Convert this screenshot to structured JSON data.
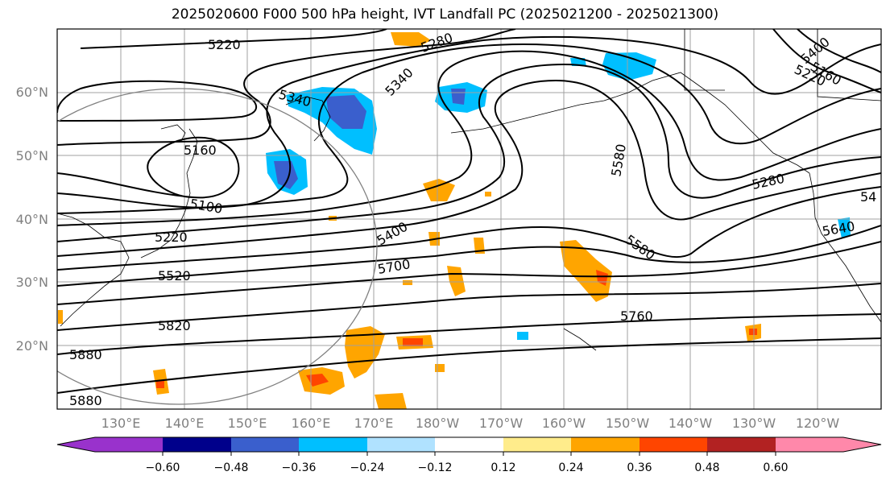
{
  "title": "2025020600 F000 500 hPa height, IVT Landfall PC (2025021200 - 2025021300)",
  "lat_labels": [
    "60°N",
    "50°N",
    "40°N",
    "30°N",
    "20°N"
  ],
  "lon_labels": [
    "130°E",
    "140°E",
    "150°E",
    "160°E",
    "170°E",
    "180°W",
    "170°W",
    "160°W",
    "150°W",
    "140°W",
    "130°W",
    "120°W"
  ],
  "contour_labels": [
    "5220",
    "5280",
    "5340",
    "5340",
    "5160",
    "5100",
    "5220",
    "5520",
    "5820",
    "5880",
    "5880",
    "5400",
    "5700",
    "5580",
    "5580",
    "5760",
    "5280",
    "5640",
    "5220",
    "5400",
    "5160",
    "54"
  ],
  "colorbar": {
    "ticks": [
      "−0.60",
      "−0.48",
      "−0.36",
      "−0.24",
      "−0.12",
      "0.12",
      "0.24",
      "0.36",
      "0.48",
      "0.60"
    ],
    "colors": [
      "#9932cc",
      "#00008b",
      "#3a5fcd",
      "#00bfff",
      "#b0e2ff",
      "#ffffff",
      "#ffec8b",
      "#ffa500",
      "#ff4500",
      "#b22222",
      "#ff88aa"
    ]
  }
}
